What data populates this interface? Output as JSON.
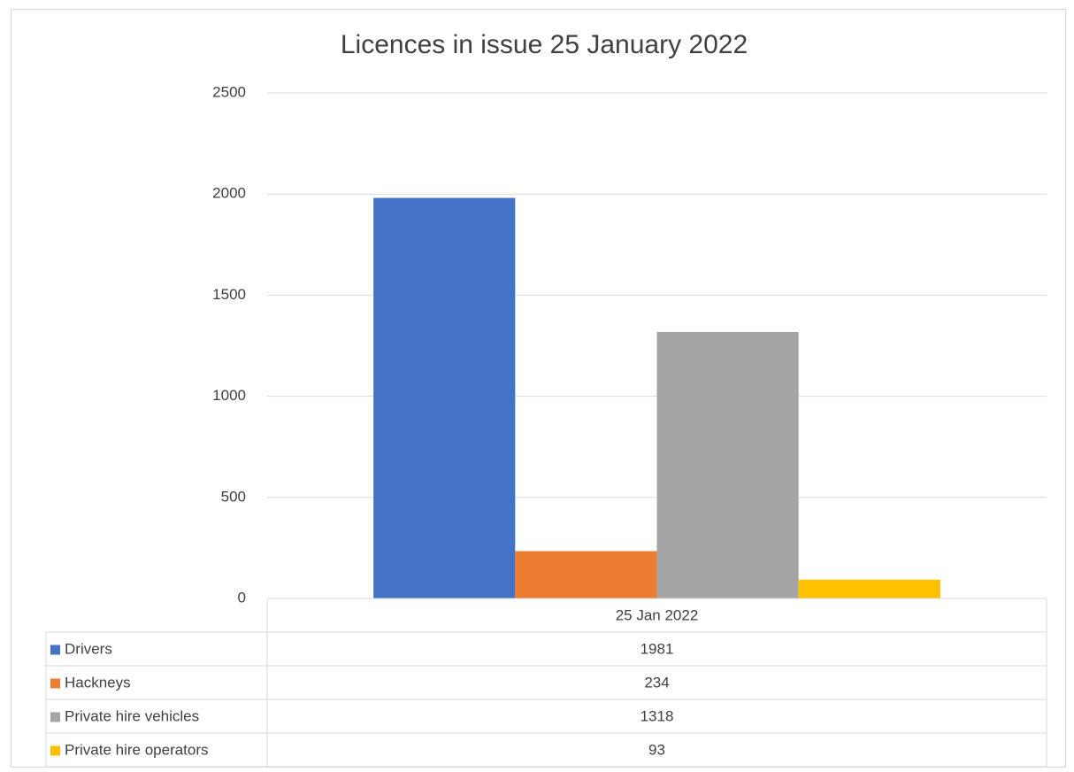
{
  "chart_data": {
    "type": "bar",
    "title": "Licences in issue 25 January 2022",
    "categories": [
      "25 Jan 2022"
    ],
    "series": [
      {
        "name": "Drivers",
        "color": "#4472c4",
        "values": [
          1981
        ]
      },
      {
        "name": "Hackneys",
        "color": "#ed7d31",
        "values": [
          234
        ]
      },
      {
        "name": "Private hire vehicles",
        "color": "#a5a5a5",
        "values": [
          1318
        ]
      },
      {
        "name": "Private hire operators",
        "color": "#ffc000",
        "values": [
          93
        ]
      }
    ],
    "ylim": [
      0,
      2500
    ],
    "yticks": [
      0,
      500,
      1000,
      1500,
      2000,
      2500
    ],
    "grid": true,
    "data_table": true
  }
}
